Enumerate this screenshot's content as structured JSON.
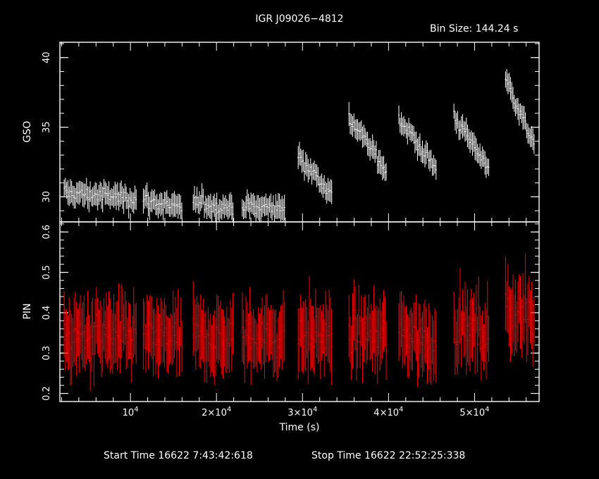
{
  "chart_data": {
    "type": "scatter",
    "title": "IGR J09026−4812",
    "bin_size_label": "Bin Size:  144.24  s",
    "xlabel": "Time (s)",
    "footer": {
      "start": "Start Time 16622  7:43:42:618",
      "stop": "Stop Time 16622 22:52:25:338"
    },
    "xlim": [
      1800,
      57500
    ],
    "x_ticks": [
      {
        "value": 10000,
        "base": "10",
        "exp": "4"
      },
      {
        "value": 20000,
        "base": "2×10",
        "exp": "4"
      },
      {
        "value": 30000,
        "base": "3×10",
        "exp": "4"
      },
      {
        "value": 40000,
        "base": "4×10",
        "exp": "4"
      },
      {
        "value": 50000,
        "base": "5×10",
        "exp": "4"
      }
    ],
    "colors": {
      "frame": "#ffffff",
      "gso": "#ffffff",
      "pin": "#ff0000"
    },
    "panels": [
      {
        "name": "GSO",
        "ylabel": "GSO",
        "ylim": [
          28.2,
          41.1
        ],
        "y_ticks": [
          30,
          35,
          40
        ],
        "y_tick_labels": [
          "30",
          "35",
          "40"
        ],
        "segments": [
          {
            "x_start": 2300,
            "x_end": 10800,
            "y_start": 30.3,
            "y_end": 29.9,
            "y_err": 0.75
          },
          {
            "x_start": 11500,
            "x_end": 16000,
            "y_start": 29.8,
            "y_end": 29.1,
            "y_err": 0.75
          },
          {
            "x_start": 17300,
            "x_end": 22000,
            "y_start": 29.6,
            "y_end": 29.2,
            "y_err": 0.75
          },
          {
            "x_start": 23000,
            "x_end": 28000,
            "y_start": 29.3,
            "y_end": 29.2,
            "y_err": 0.75
          },
          {
            "x_start": 29500,
            "x_end": 33400,
            "y_start": 33.0,
            "y_end": 30.2,
            "y_err": 0.7
          },
          {
            "x_start": 35400,
            "x_end": 39800,
            "y_start": 35.7,
            "y_end": 31.9,
            "y_err": 0.7
          },
          {
            "x_start": 41200,
            "x_end": 45600,
            "y_start": 35.6,
            "y_end": 32.0,
            "y_err": 0.7
          },
          {
            "x_start": 47600,
            "x_end": 51700,
            "y_start": 35.8,
            "y_end": 32.1,
            "y_err": 0.7
          },
          {
            "x_start": 53600,
            "x_end": 57000,
            "y_start": 38.5,
            "y_end": 33.7,
            "y_err": 0.7
          }
        ]
      },
      {
        "name": "PIN",
        "ylabel": "PIN",
        "ylim": [
          0.18,
          0.625
        ],
        "y_ticks": [
          0.2,
          0.3,
          0.4,
          0.5,
          0.6
        ],
        "y_tick_labels": [
          "0.2",
          "0.3",
          "0.4",
          "0.5",
          "0.6"
        ],
        "segments": [
          {
            "x_start": 2300,
            "x_end": 10800,
            "y_start": 0.34,
            "y_end": 0.34,
            "y_err": 0.075
          },
          {
            "x_start": 11500,
            "x_end": 16000,
            "y_start": 0.34,
            "y_end": 0.33,
            "y_err": 0.075
          },
          {
            "x_start": 17300,
            "x_end": 22000,
            "y_start": 0.34,
            "y_end": 0.33,
            "y_err": 0.075
          },
          {
            "x_start": 23000,
            "x_end": 28000,
            "y_start": 0.34,
            "y_end": 0.34,
            "y_err": 0.075
          },
          {
            "x_start": 29500,
            "x_end": 33400,
            "y_start": 0.35,
            "y_end": 0.34,
            "y_err": 0.075
          },
          {
            "x_start": 35400,
            "x_end": 39800,
            "y_start": 0.35,
            "y_end": 0.34,
            "y_err": 0.075
          },
          {
            "x_start": 41200,
            "x_end": 45600,
            "y_start": 0.35,
            "y_end": 0.33,
            "y_err": 0.075
          },
          {
            "x_start": 47600,
            "x_end": 51700,
            "y_start": 0.37,
            "y_end": 0.34,
            "y_err": 0.075
          },
          {
            "x_start": 53600,
            "x_end": 57000,
            "y_start": 0.42,
            "y_end": 0.38,
            "y_err": 0.075
          }
        ]
      }
    ]
  }
}
